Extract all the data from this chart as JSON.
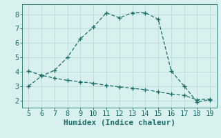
{
  "xlabel": "Humidex (Indice chaleur)",
  "xlim": [
    4.5,
    19.5
  ],
  "ylim": [
    1.5,
    8.7
  ],
  "xticks": [
    5,
    6,
    7,
    8,
    9,
    10,
    11,
    12,
    13,
    14,
    15,
    16,
    17,
    18,
    19
  ],
  "yticks": [
    2,
    3,
    4,
    5,
    6,
    7,
    8
  ],
  "background_color": "#d8f0ee",
  "line_color": "#1c6e6a",
  "line1_x": [
    5,
    6,
    7,
    8,
    9,
    10,
    11,
    12,
    13,
    14,
    15,
    16,
    17,
    18,
    19
  ],
  "line1_y": [
    3.0,
    3.7,
    4.1,
    5.0,
    6.3,
    7.1,
    8.1,
    7.75,
    8.1,
    8.1,
    7.65,
    4.05,
    3.0,
    1.9,
    2.05
  ],
  "line2_x": [
    5,
    6,
    7,
    8,
    9,
    10,
    11,
    12,
    13,
    14,
    15,
    16,
    17,
    18,
    19
  ],
  "line2_y": [
    4.05,
    3.75,
    3.55,
    3.4,
    3.3,
    3.2,
    3.05,
    2.95,
    2.85,
    2.75,
    2.6,
    2.45,
    2.35,
    2.05,
    2.1
  ],
  "grid_color": "#b8dbd8",
  "font_color": "#1c6e6a",
  "font_size": 7.5,
  "xlabel_fontsize": 8.0,
  "marker": "+"
}
